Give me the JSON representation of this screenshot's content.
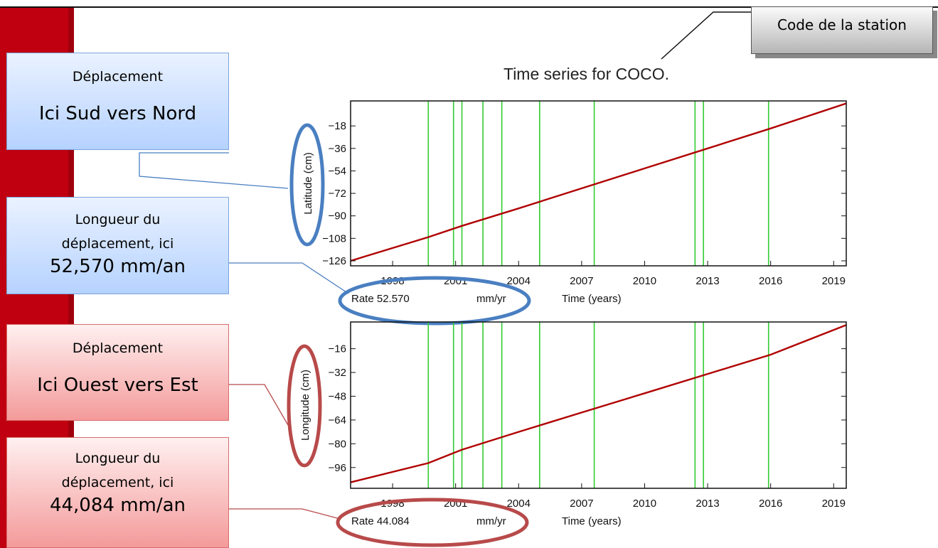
{
  "title": "Time series for COCO.",
  "callouts": {
    "station": "Code de la station",
    "lat_heading": "Déplacement",
    "lat_direction": "Ici Sud vers Nord",
    "lat_rate_line1": "Longueur du",
    "lat_rate_line2": "déplacement, ici",
    "lat_rate_value": "52,570 mm/an",
    "lon_heading": "Déplacement",
    "lon_direction": "Ici Ouest vers Est",
    "lon_rate_line1": "Longueur du",
    "lon_rate_line2": "déplacement, ici",
    "lon_rate_value": "44,084 mm/an"
  },
  "colors": {
    "data_line": "#b00000",
    "event_lines": "#33cc33",
    "blue_ellipse": "#4a7fc1",
    "red_ellipse": "#b84a4a",
    "red_band": "#c00010"
  },
  "chart_data": [
    {
      "type": "line",
      "ylabel": "Latitude (cm)",
      "xlabel": "Time (years)",
      "rate_label": "Rate 52.570",
      "rate_unit": "mm/yr",
      "xlim": [
        1996.0,
        2019.6
      ],
      "ylim": [
        -130,
        2
      ],
      "xticks": [
        1998,
        2001,
        2004,
        2007,
        2010,
        2013,
        2016,
        2019
      ],
      "yticks": [
        -18,
        -36,
        -54,
        -72,
        -90,
        -108,
        -126
      ],
      "event_lines": [
        1999.7,
        2000.9,
        2001.3,
        2002.3,
        2003.2,
        2005.0,
        2007.6,
        2012.4,
        2012.8,
        2015.9
      ],
      "series": [
        {
          "x": [
            1996.0,
            1999.7,
            2001.3,
            2004.0,
            2007.0,
            2010.0,
            2013.0,
            2016.0,
            2019.6
          ],
          "y": [
            -126,
            -107,
            -98,
            -84,
            -68,
            -52,
            -36,
            -20,
            0
          ]
        }
      ]
    },
    {
      "type": "line",
      "ylabel": "Longitude (cm)",
      "xlabel": "Time (years)",
      "rate_label": "Rate 44.084",
      "rate_unit": "mm/yr",
      "xlim": [
        1996.0,
        2019.6
      ],
      "ylim": [
        -110,
        2
      ],
      "xticks": [
        1998,
        2001,
        2004,
        2007,
        2010,
        2013,
        2016,
        2019
      ],
      "yticks": [
        -16,
        -32,
        -48,
        -64,
        -80,
        -96
      ],
      "event_lines": [
        1999.7,
        2000.9,
        2001.3,
        2002.3,
        2003.2,
        2005.0,
        2007.6,
        2012.4,
        2012.8,
        2015.9
      ],
      "series": [
        {
          "x": [
            1996.0,
            1999.7,
            2001.3,
            2004.0,
            2007.0,
            2010.0,
            2013.0,
            2016.0,
            2019.6
          ],
          "y": [
            -106,
            -93,
            -84,
            -72,
            -59,
            -46,
            -33,
            -20,
            0
          ]
        }
      ]
    }
  ]
}
